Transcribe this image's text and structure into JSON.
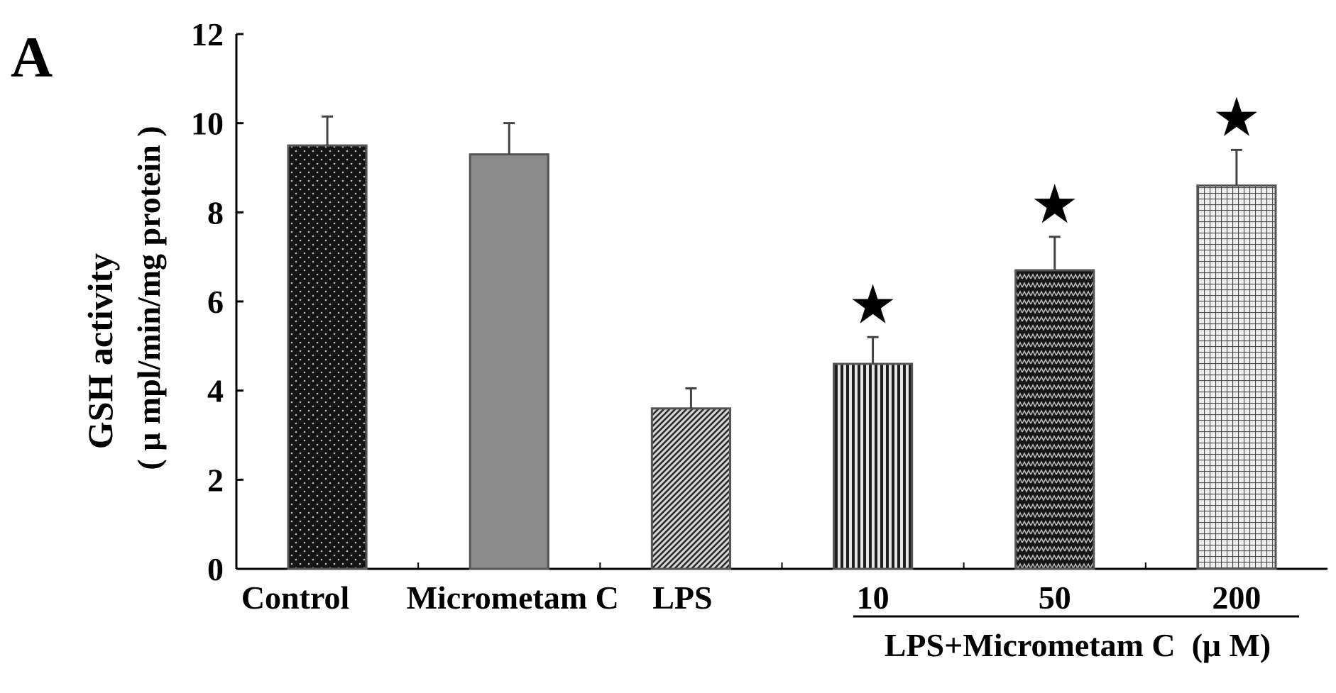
{
  "panel_label": "A",
  "group_caption": "LPS+Micrometam C  (μ M)",
  "chart_data": {
    "type": "bar",
    "title": "",
    "ylabel_line1": "GSH activity",
    "ylabel_line2": "( μ mpl/min/mg protein )",
    "xlabel": "",
    "ylim": [
      0,
      12
    ],
    "yticks": [
      0,
      2,
      4,
      6,
      8,
      10,
      12
    ],
    "grid": false,
    "legend": "none",
    "categories": [
      "Control",
      "Micrometam C",
      "LPS",
      "10",
      "50",
      "200"
    ],
    "values": [
      9.5,
      9.3,
      3.6,
      4.6,
      6.7,
      8.6
    ],
    "errors": [
      0.65,
      0.7,
      0.45,
      0.6,
      0.75,
      0.8
    ],
    "significant": [
      false,
      false,
      false,
      true,
      true,
      true
    ],
    "significance_marker": "★",
    "bar_patterns": [
      "dots-dark",
      "solid-gray",
      "diagonal",
      "vertical",
      "zigzag",
      "grid"
    ],
    "colors": {
      "dark": "#1a1a1a",
      "gray": "#8a8a8a",
      "light": "#bdbdbd"
    }
  }
}
